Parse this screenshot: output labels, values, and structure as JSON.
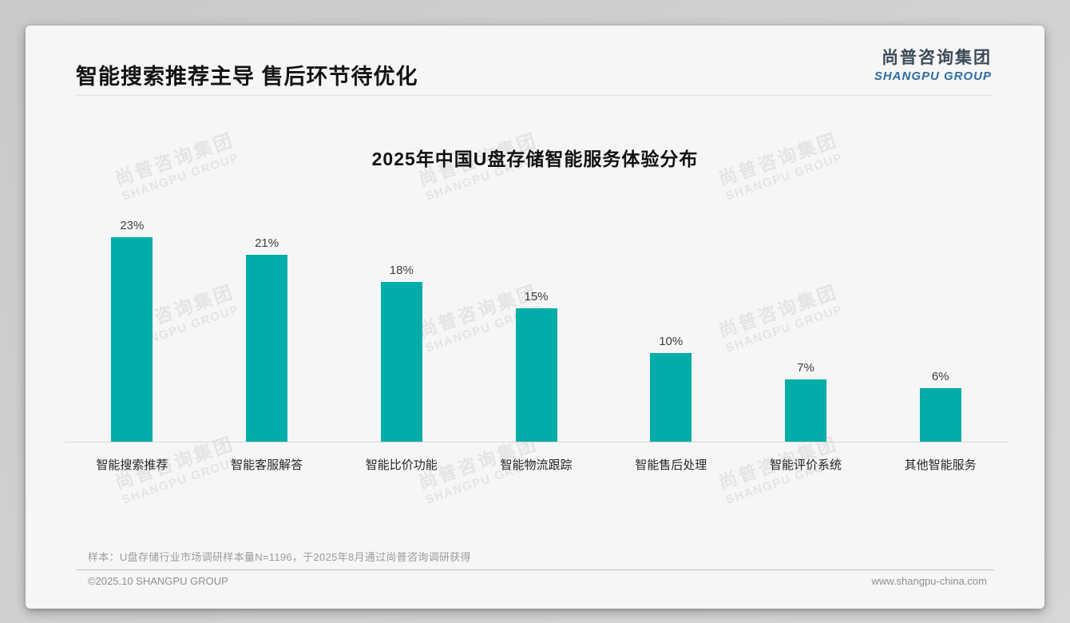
{
  "header": {
    "title": "智能搜索推荐主导 售后环节待优化",
    "logo_cn": "尚普咨询集团",
    "logo_en": "SHANGPU GROUP"
  },
  "chart_data": {
    "type": "bar",
    "title": "2025年中国U盘存储智能服务体验分布",
    "categories": [
      "智能搜索推荐",
      "智能客服解答",
      "智能比价功能",
      "智能物流跟踪",
      "智能售后处理",
      "智能评价系统",
      "其他智能服务"
    ],
    "values": [
      23,
      21,
      18,
      15,
      10,
      7,
      6
    ],
    "value_labels": [
      "23%",
      "21%",
      "18%",
      "15%",
      "10%",
      "7%",
      "6%"
    ],
    "unit": "%",
    "ylim": [
      0,
      25
    ],
    "grid": false,
    "legend": false,
    "bar_color": "#00ADA8",
    "axis_line_color": "#d8d8d8"
  },
  "watermark": {
    "cn": "尚普咨询集团",
    "en": "SHANGPU GROUP"
  },
  "note": "样本：U盘存储行业市场调研样本量N=1196，于2025年8月通过尚普咨询调研获得",
  "footer": {
    "copyright": "©2025.10 SHANGPU GROUP",
    "website": "www.shangpu-china.com"
  },
  "colors": {
    "accent_teal": "#00ADA8",
    "logo_blue": "#2E6DA6",
    "logo_dark": "#3C4A57",
    "card_bg": "#F6F6F6",
    "page_bg": "#CFCFCF"
  }
}
